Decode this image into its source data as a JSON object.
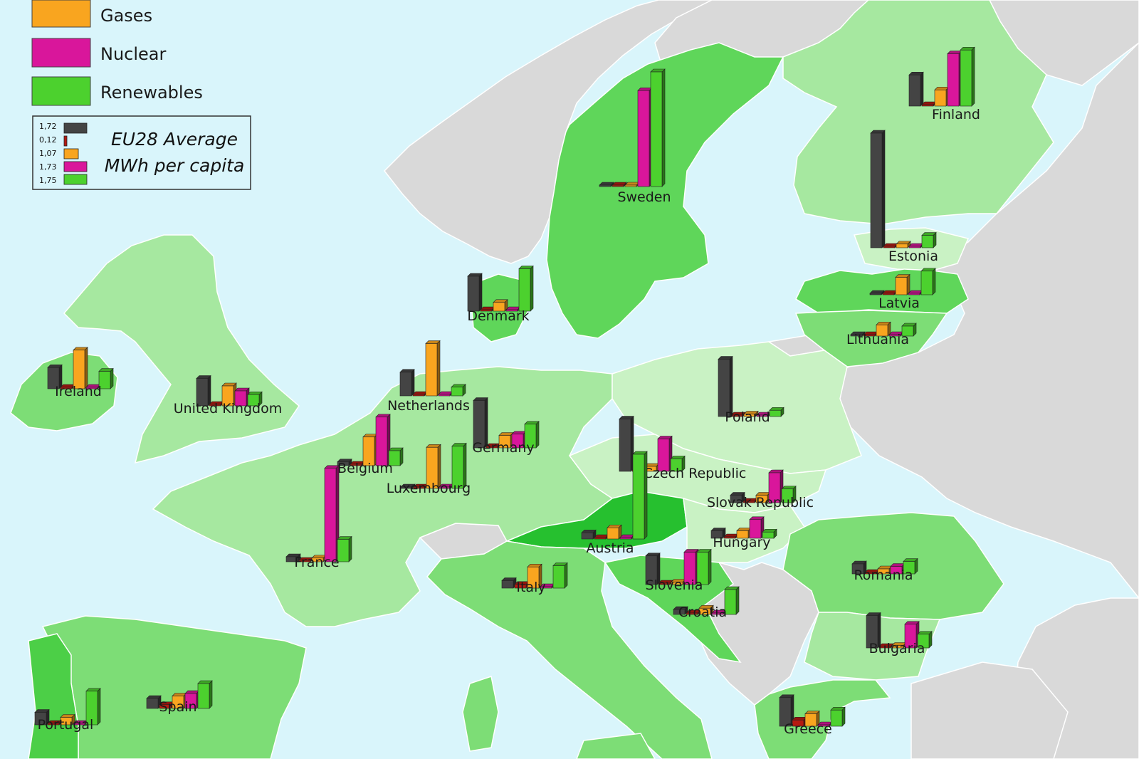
{
  "legend": {
    "items": [
      {
        "label": "Gases",
        "color": "#f9a51f"
      },
      {
        "label": "Nuclear",
        "color": "#d9169b"
      },
      {
        "label": "Renewables",
        "color": "#4cd12e"
      }
    ]
  },
  "average_box": {
    "line1": "EU28 Average",
    "line2": "MWh per capita",
    "values": [
      "1,72",
      "0,12",
      "1,07",
      "1,73",
      "1,75"
    ]
  },
  "colors": {
    "sea": "#d9f5fb",
    "non_eu": "#d9d9d9",
    "solids": "#444444",
    "oil": "#b51a10",
    "gases": "#f9a51f",
    "nuclear": "#d9169b",
    "renewables": "#4cd12e"
  },
  "chart_data": {
    "type": "bar",
    "unit": "MWh per capita",
    "series_order": [
      "solids",
      "oil",
      "gases",
      "nuclear",
      "renewables"
    ],
    "countries": [
      {
        "name": "Sweden",
        "values": [
          0.1,
          0.05,
          0.1,
          7.7,
          9.2
        ]
      },
      {
        "name": "Finland",
        "values": [
          2.5,
          0.05,
          1.3,
          4.2,
          4.5
        ]
      },
      {
        "name": "Estonia",
        "values": [
          9.2,
          0.05,
          0.3,
          0,
          1.0
        ]
      },
      {
        "name": "Latvia",
        "values": [
          0.1,
          0.05,
          1.4,
          0,
          1.9
        ]
      },
      {
        "name": "Lithuania",
        "values": [
          0.1,
          0.05,
          0.9,
          0,
          0.8
        ]
      },
      {
        "name": "Denmark",
        "values": [
          2.8,
          0.05,
          0.7,
          0,
          3.4
        ]
      },
      {
        "name": "Ireland",
        "values": [
          1.7,
          0.05,
          3.1,
          0,
          1.4
        ]
      },
      {
        "name": "United Kingdom",
        "values": [
          2.2,
          0.05,
          1.6,
          1.2,
          0.9
        ]
      },
      {
        "name": "Netherlands",
        "values": [
          1.9,
          0.05,
          4.2,
          0,
          0.7
        ]
      },
      {
        "name": "Belgium",
        "values": [
          0.3,
          0.05,
          2.3,
          3.9,
          1.2
        ]
      },
      {
        "name": "Luxembourg",
        "values": [
          0.05,
          0.05,
          3.3,
          0,
          3.4
        ]
      },
      {
        "name": "Germany",
        "values": [
          3.8,
          0.05,
          1.0,
          1.1,
          1.9
        ]
      },
      {
        "name": "France",
        "values": [
          0.4,
          0.05,
          0.3,
          7.5,
          1.8
        ]
      },
      {
        "name": "Poland",
        "values": [
          4.6,
          0.05,
          0.2,
          0,
          0.5
        ]
      },
      {
        "name": "Czech Republic",
        "values": [
          4.2,
          0.05,
          0.4,
          2.6,
          1.0
        ]
      },
      {
        "name": "Slovak Republic",
        "values": [
          0.6,
          0.05,
          0.6,
          2.4,
          1.1
        ]
      },
      {
        "name": "Hungary",
        "values": [
          0.6,
          0.05,
          0.6,
          1.5,
          0.5
        ]
      },
      {
        "name": "Austria",
        "values": [
          0.5,
          0.05,
          0.9,
          0,
          6.8
        ]
      },
      {
        "name": "Slovenia",
        "values": [
          2.3,
          0.05,
          0.2,
          2.6,
          2.6
        ]
      },
      {
        "name": "Croatia",
        "values": [
          0.4,
          0.05,
          0.5,
          0,
          2.0
        ]
      },
      {
        "name": "Italy",
        "values": [
          0.6,
          0.3,
          1.7,
          0,
          1.8
        ]
      },
      {
        "name": "Romania",
        "values": [
          0.8,
          0.05,
          0.4,
          0.6,
          1.0
        ]
      },
      {
        "name": "Bulgaria",
        "values": [
          2.6,
          0.05,
          0.2,
          1.9,
          1.1
        ]
      },
      {
        "name": "Greece",
        "values": [
          2.3,
          0.5,
          1.0,
          0,
          1.3
        ]
      },
      {
        "name": "Spain",
        "values": [
          0.8,
          0.3,
          1.0,
          1.2,
          2.0
        ]
      },
      {
        "name": "Portugal",
        "values": [
          1.0,
          0.05,
          0.6,
          0,
          2.7
        ]
      }
    ]
  }
}
